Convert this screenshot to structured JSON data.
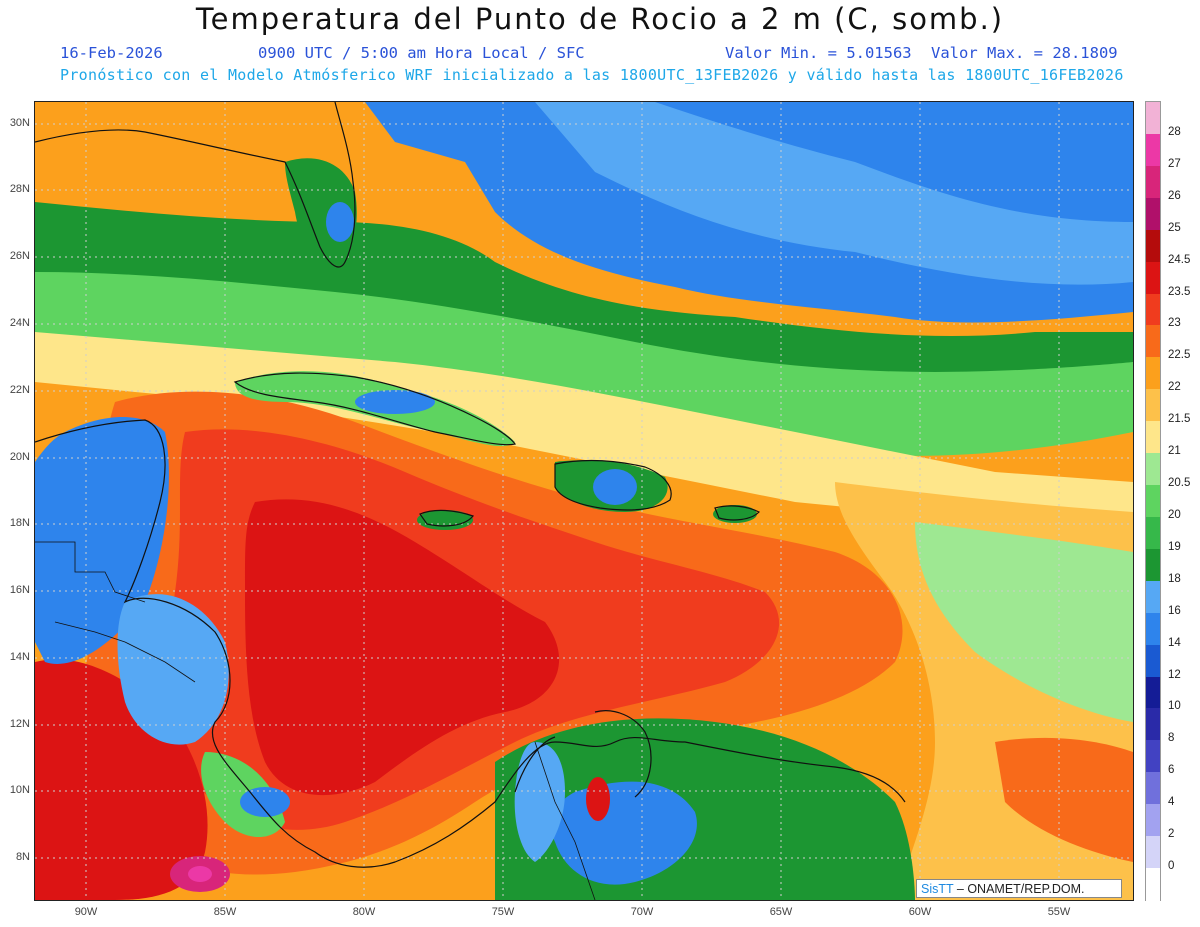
{
  "title": "Temperatura del Punto de Rocio a 2 m (C, somb.)",
  "date": "16-Feb-2026",
  "time_info": "0900 UTC / 5:00 am Hora Local / SFC",
  "value_min": "Valor Min. = 5.01563",
  "value_max": "Valor Max. = 28.1809",
  "init_info": "Pronóstico con el Modelo Atmósferico WRF inicializado a las 1800UTC_13FEB2026 y válido hasta las  1800UTC_16FEB2026",
  "latitude_labels": [
    "30N",
    "28N",
    "26N",
    "24N",
    "22N",
    "20N",
    "18N",
    "16N",
    "14N",
    "12N",
    "10N",
    "8N"
  ],
  "longitude_labels": [
    "90W",
    "85W",
    "80W",
    "75W",
    "70W",
    "65W",
    "60W",
    "55W"
  ],
  "legend": {
    "levels": [
      {
        "label": "28",
        "color": "#f2b2d6"
      },
      {
        "label": "27",
        "color": "#ec38a6"
      },
      {
        "label": "26",
        "color": "#d8257a"
      },
      {
        "label": "25",
        "color": "#b0106a"
      },
      {
        "label": "24.5",
        "color": "#b40c0c"
      },
      {
        "label": "23.5",
        "color": "#dc1414"
      },
      {
        "label": "23",
        "color": "#f03c1e"
      },
      {
        "label": "22.5",
        "color": "#f86a1a"
      },
      {
        "label": "22",
        "color": "#fca01c"
      },
      {
        "label": "21.5",
        "color": "#fdc14a"
      },
      {
        "label": "21",
        "color": "#fee68a"
      },
      {
        "label": "20.5",
        "color": "#9ee892"
      },
      {
        "label": "20",
        "color": "#5ed460"
      },
      {
        "label": "19",
        "color": "#36b84a"
      },
      {
        "label": "18",
        "color": "#1c9632"
      },
      {
        "label": "16",
        "color": "#56a8f4"
      },
      {
        "label": "14",
        "color": "#2e84ec"
      },
      {
        "label": "12",
        "color": "#1a5ad2"
      },
      {
        "label": "10",
        "color": "#141c96"
      },
      {
        "label": "8",
        "color": "#2a2aa8"
      },
      {
        "label": "6",
        "color": "#4242c2"
      },
      {
        "label": "4",
        "color": "#7070dc"
      },
      {
        "label": "2",
        "color": "#a2a2f0"
      },
      {
        "label": "0",
        "color": "#d4d4f8"
      },
      {
        "label": "",
        "color": "#ffffff"
      }
    ]
  },
  "credit": {
    "brand": "SisTT",
    "text": " – ONAMET/REP.DOM."
  }
}
